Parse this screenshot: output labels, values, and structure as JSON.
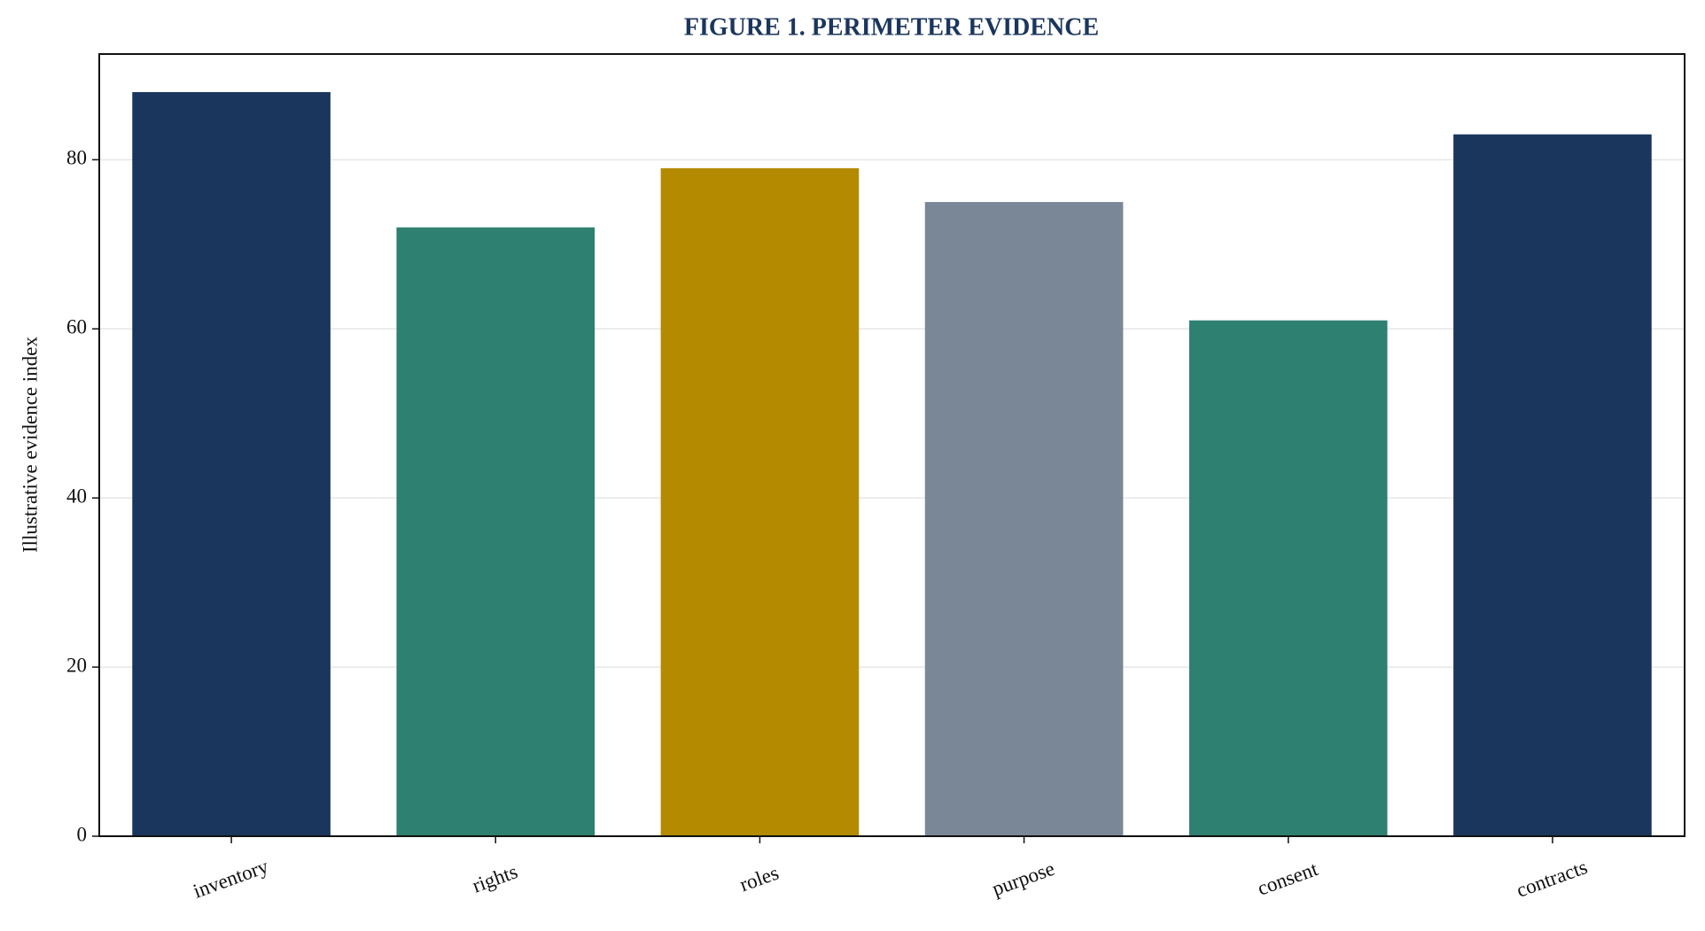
{
  "chart_data": {
    "type": "bar",
    "title": "FIGURE 1. PERIMETER EVIDENCE",
    "y_label": "Illustrative evidence index",
    "categories": [
      "inventory",
      "rights",
      "roles",
      "purpose",
      "consent",
      "contracts"
    ],
    "values": [
      88,
      72,
      79,
      75,
      61,
      83
    ],
    "colors": [
      "#1b365d",
      "#2e8070",
      "#b38a00",
      "#7a8796",
      "#2e8070",
      "#1b365d"
    ],
    "ylim": [
      0,
      92.5
    ],
    "yticks": [
      0,
      20,
      40,
      60,
      80
    ],
    "grid": true
  }
}
